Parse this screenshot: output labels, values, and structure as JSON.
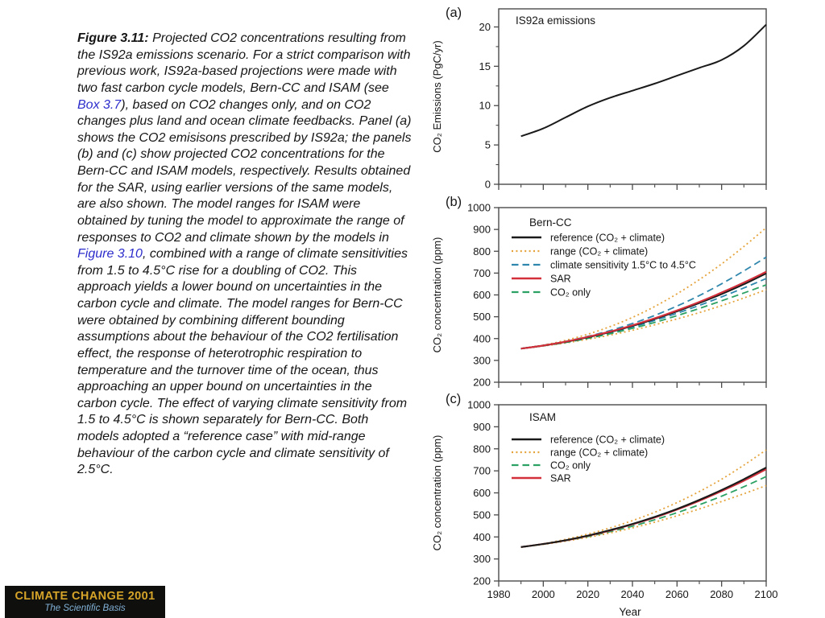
{
  "colors": {
    "link": "#2d2dcc",
    "axis": "#4a4a4a",
    "text": "#161616",
    "series_black": "#1a1a1a",
    "series_orange": "#e5a33b",
    "series_blue": "#2f87ad",
    "series_red": "#d3303c",
    "series_green": "#2ba164"
  },
  "caption": {
    "segments": [
      {
        "kind": "bold",
        "text": "Figure 3.11:"
      },
      {
        "kind": "text",
        "text": " Projected CO2 concentrations resulting from the IS92a emissions scenario. For a strict comparison with previous work, IS92a-based projections were made with two fast carbon cycle models, Bern-CC and ISAM (see "
      },
      {
        "kind": "link",
        "text": "Box 3.7"
      },
      {
        "kind": "text",
        "text": "), based on CO2 changes only, and on CO2 changes plus land and ocean climate feedbacks. Panel (a) shows the CO2 emisisons prescribed by IS92a; the panels (b) and (c) show projected CO2 concentrations for the Bern-CC and ISAM models, respectively. Results obtained for the SAR, using earlier versions of the same models, are also shown. The model ranges for ISAM were obtained by tuning the model to approximate the range of responses to CO2 and climate shown by the models in "
      },
      {
        "kind": "link",
        "text": "Figure 3.10"
      },
      {
        "kind": "text",
        "text": ", combined with a range of climate sensitivities from 1.5 to 4.5°C rise for a doubling of CO2. This approach yields a lower bound on uncertainties in the carbon cycle and climate. The model ranges for Bern-CC were obtained by combining different bounding assumptions about the behaviour of the CO2 fertilisation effect, the response of heterotrophic respiration to temperature and the turnover time of the ocean, thus approaching an upper bound on uncertainties in the carbon cycle. The effect of varying climate sensitivity from 1.5 to 4.5°C is shown separately for Bern-CC. Both models adopted a “reference case” with mid-range behaviour of the carbon cycle and climate sensitivity of 2.5°C."
      }
    ]
  },
  "logo": {
    "title": "CLIMATE CHANGE 2001",
    "subtitle": "The Scientific Basis",
    "bg": "#0f0f0d",
    "title_color": "#d5a429",
    "subtitle_color": "#82b2d8"
  },
  "chart_data": [
    {
      "id": "a",
      "type": "line",
      "panel_label": "(a)",
      "title": "IS92a emissions",
      "ylabel": "CO₂ Emissions (PgC/yr)",
      "xlabel": "",
      "ylim": [
        0,
        22.3
      ],
      "yticks": [
        0,
        5,
        10,
        15,
        20
      ],
      "yminor": [
        2.5,
        7.5,
        12.5,
        17.5
      ],
      "xlim": [
        1980,
        2100
      ],
      "xticks": [
        1980,
        2000,
        2020,
        2040,
        2060,
        2080,
        2100
      ],
      "x_minor_step": 10,
      "show_x_labels": false,
      "grid": false,
      "x": [
        1990,
        2000,
        2010,
        2020,
        2030,
        2040,
        2050,
        2060,
        2070,
        2080,
        2090,
        2100
      ],
      "series": [
        {
          "name": "IS92a emissions",
          "color": "#1a1a1a",
          "style": "solid",
          "width": 2,
          "values": [
            6.1,
            7.1,
            8.5,
            9.9,
            11.0,
            11.9,
            12.8,
            13.8,
            14.8,
            15.8,
            17.6,
            20.3
          ]
        }
      ]
    },
    {
      "id": "b",
      "type": "line",
      "panel_label": "(b)",
      "title": "Bern-CC",
      "ylabel": "CO₂ concentration (ppm)",
      "xlabel": "",
      "ylim": [
        200,
        1000
      ],
      "yticks": [
        200,
        300,
        400,
        500,
        600,
        700,
        800,
        900,
        1000
      ],
      "xlim": [
        1980,
        2100
      ],
      "xticks": [
        1980,
        2000,
        2020,
        2040,
        2060,
        2080,
        2100
      ],
      "x_minor_step": 10,
      "show_x_labels": false,
      "grid": false,
      "legend": [
        {
          "label": "reference (CO₂ + climate)",
          "color": "#1a1a1a",
          "style": "solid",
          "width": 2.1
        },
        {
          "label": "range (CO₂ + climate)",
          "color": "#e5a33b",
          "style": "dot",
          "width": 1.8
        },
        {
          "label": "climate sensitivity 1.5°C to 4.5°C",
          "color": "#2f87ad",
          "style": "dash",
          "width": 1.8
        },
        {
          "label": "SAR",
          "color": "#d3303c",
          "style": "solid",
          "width": 2.1
        },
        {
          "label": "CO₂ only",
          "color": "#2ba164",
          "style": "dash",
          "width": 1.8
        }
      ],
      "x": [
        1990,
        2000,
        2010,
        2020,
        2030,
        2040,
        2050,
        2060,
        2070,
        2080,
        2090,
        2100
      ],
      "series": [
        {
          "name": "range upper (CO2 + climate)",
          "color": "#e5a33b",
          "style": "dot",
          "width": 1.8,
          "values": [
            354,
            370,
            392,
            420,
            455,
            497,
            547,
            605,
            670,
            742,
            822,
            908
          ]
        },
        {
          "name": "range lower (CO2 + climate)",
          "color": "#e5a33b",
          "style": "dot",
          "width": 1.8,
          "values": [
            354,
            366,
            380,
            397,
            416,
            438,
            463,
            490,
            519,
            551,
            586,
            624
          ]
        },
        {
          "name": "climate sensitivity upper 4.5C",
          "color": "#2f87ad",
          "style": "dash",
          "width": 1.8,
          "values": [
            354,
            369,
            387,
            410,
            437,
            469,
            506,
            549,
            597,
            651,
            710,
            773
          ]
        },
        {
          "name": "climate sensitivity lower 1.5C",
          "color": "#2f87ad",
          "style": "dash",
          "width": 1.8,
          "values": [
            354,
            367,
            384,
            404,
            427,
            453,
            483,
            516,
            552,
            591,
            632,
            675
          ]
        },
        {
          "name": "CO2 only",
          "color": "#2ba164",
          "style": "dash",
          "width": 1.8,
          "values": [
            354,
            367,
            382,
            401,
            422,
            447,
            474,
            505,
            538,
            573,
            609,
            646
          ]
        },
        {
          "name": "reference (CO2 + climate)",
          "color": "#1a1a1a",
          "style": "solid",
          "width": 2.1,
          "values": [
            354,
            368,
            385,
            406,
            430,
            458,
            490,
            525,
            563,
            604,
            649,
            699
          ]
        },
        {
          "name": "SAR",
          "color": "#d3303c",
          "style": "solid",
          "width": 2.1,
          "values": [
            354,
            368,
            386,
            408,
            432,
            461,
            493,
            529,
            568,
            611,
            657,
            706
          ]
        }
      ]
    },
    {
      "id": "c",
      "type": "line",
      "panel_label": "(c)",
      "title": "ISAM",
      "ylabel": "CO₂ concentration (ppm)",
      "xlabel": "Year",
      "ylim": [
        200,
        1000
      ],
      "yticks": [
        200,
        300,
        400,
        500,
        600,
        700,
        800,
        900,
        1000
      ],
      "xlim": [
        1980,
        2100
      ],
      "xticks": [
        1980,
        2000,
        2020,
        2040,
        2060,
        2080,
        2100
      ],
      "x_minor_step": 10,
      "show_x_labels": true,
      "grid": false,
      "legend": [
        {
          "label": "reference (CO₂ + climate)",
          "color": "#1a1a1a",
          "style": "solid",
          "width": 2.1
        },
        {
          "label": "range (CO₂ + climate)",
          "color": "#e5a33b",
          "style": "dot",
          "width": 1.8
        },
        {
          "label": "CO₂ only",
          "color": "#2ba164",
          "style": "dash",
          "width": 1.8
        },
        {
          "label": "SAR",
          "color": "#d3303c",
          "style": "solid",
          "width": 2.1
        }
      ],
      "x": [
        1990,
        2000,
        2010,
        2020,
        2030,
        2040,
        2050,
        2060,
        2070,
        2080,
        2090,
        2100
      ],
      "series": [
        {
          "name": "range upper (CO2 + climate)",
          "color": "#e5a33b",
          "style": "dot",
          "width": 1.8,
          "values": [
            354,
            369,
            389,
            413,
            441,
            474,
            512,
            556,
            606,
            662,
            726,
            795
          ]
        },
        {
          "name": "range lower (CO2 + climate)",
          "color": "#e5a33b",
          "style": "dot",
          "width": 1.8,
          "values": [
            354,
            366,
            381,
            398,
            418,
            441,
            467,
            496,
            527,
            561,
            596,
            633
          ]
        },
        {
          "name": "CO2 only",
          "color": "#2ba164",
          "style": "dash",
          "width": 1.8,
          "values": [
            354,
            367,
            383,
            402,
            424,
            449,
            478,
            510,
            546,
            585,
            628,
            674
          ]
        },
        {
          "name": "SAR",
          "color": "#d3303c",
          "style": "solid",
          "width": 2.1,
          "values": [
            354,
            368,
            384,
            405,
            429,
            457,
            488,
            524,
            564,
            608,
            655,
            707
          ]
        },
        {
          "name": "reference (CO2 + climate)",
          "color": "#1a1a1a",
          "style": "solid",
          "width": 2.1,
          "values": [
            354,
            368,
            385,
            406,
            431,
            459,
            491,
            527,
            568,
            613,
            662,
            715
          ]
        }
      ]
    }
  ]
}
